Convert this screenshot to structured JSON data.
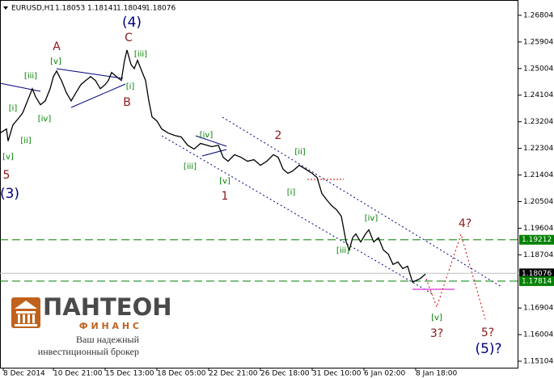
{
  "chart_data": {
    "type": "line",
    "header": {
      "symbol": "EURUSD,H1",
      "ohlc": [
        1.18053,
        1.18141,
        1.18049,
        1.18076
      ]
    },
    "series": [
      {
        "color": "#000000",
        "x": [
          0,
          8,
          10,
          16,
          22,
          28,
          34,
          40,
          44,
          50,
          56,
          62,
          66,
          70,
          76,
          82,
          88,
          94,
          100,
          106,
          112,
          118,
          124,
          130,
          134,
          138,
          144,
          150,
          154,
          157,
          162,
          166,
          170,
          176,
          180,
          184,
          188,
          194,
          200,
          208,
          216,
          224,
          232,
          240,
          248,
          256,
          262,
          270,
          276,
          282,
          290,
          298,
          306,
          314,
          322,
          330,
          338,
          344,
          350,
          356,
          362,
          370,
          378,
          386,
          392,
          398,
          404,
          410,
          416,
          422,
          428,
          432,
          436,
          440,
          446,
          452,
          456,
          462,
          468,
          474,
          480,
          486,
          492,
          498,
          504,
          510,
          514,
          520,
          526
        ],
        "values": [
          1.2282,
          1.2296,
          1.2255,
          1.231,
          1.2329,
          1.235,
          1.2391,
          1.2432,
          1.2405,
          1.2378,
          1.2391,
          1.2432,
          1.2473,
          1.2492,
          1.246,
          1.2419,
          1.2391,
          1.2419,
          1.2446,
          1.246,
          1.2473,
          1.246,
          1.2432,
          1.2446,
          1.246,
          1.2487,
          1.2473,
          1.246,
          1.2528,
          1.2563,
          1.2514,
          1.25,
          1.2528,
          1.2487,
          1.246,
          1.2391,
          1.2337,
          1.2323,
          1.2296,
          1.2282,
          1.2274,
          1.2269,
          1.2241,
          1.2228,
          1.2247,
          1.2241,
          1.2236,
          1.2241,
          1.22,
          1.2187,
          1.2209,
          1.22,
          1.2187,
          1.2192,
          1.2173,
          1.2187,
          1.2209,
          1.22,
          1.216,
          1.2146,
          1.2154,
          1.2173,
          1.216,
          1.2146,
          1.2132,
          1.2078,
          1.2056,
          1.2037,
          1.2023,
          1.2001,
          1.1914,
          1.1887,
          1.1928,
          1.1941,
          1.1914,
          1.1941,
          1.1955,
          1.1914,
          1.1928,
          1.1887,
          1.1873,
          1.1838,
          1.1846,
          1.1824,
          1.1832,
          1.1778,
          1.1783,
          1.1791,
          1.1805
        ]
      }
    ],
    "xlim": [
      0,
      641
    ],
    "xticks": [
      {
        "value": 4,
        "label": "8 Dec 2014"
      },
      {
        "value": 66,
        "label": "10 Dec 21:00"
      },
      {
        "value": 130,
        "label": "15 Dec 13:00"
      },
      {
        "value": 194,
        "label": "18 Dec 05:00"
      },
      {
        "value": 258,
        "label": "22 Dec 21:00"
      },
      {
        "value": 322,
        "label": "26 Dec 18:00"
      },
      {
        "value": 386,
        "label": "31 Dec 10:00"
      },
      {
        "value": 450,
        "label": "6 Jan 02:00"
      },
      {
        "value": 514,
        "label": "8 Jan 18:00"
      }
    ],
    "ylim": [
      1.14886,
      1.27322
    ],
    "yticks": [
      1.26804,
      1.25904,
      1.25004,
      1.24104,
      1.23204,
      1.22304,
      1.21404,
      1.20504,
      1.19604,
      1.18704,
      1.16904,
      1.16004,
      1.15104
    ],
    "levels": [
      {
        "value": 1.19212,
        "color": "#008000"
      },
      {
        "value": 1.17814,
        "color": "#008000"
      }
    ],
    "last_price": 1.18076,
    "annotations": [
      "5",
      "(3)",
      "[v]",
      "[i]",
      "[ii]",
      "[iii]",
      "[iv]",
      "A",
      "[v]",
      "(4)",
      "C",
      "[iii]",
      "[i]",
      "B",
      "[iv]",
      "[iii]",
      "[v]",
      "1",
      "2",
      "[ii]",
      "[i]",
      "[iv]",
      "[iii]",
      "[v]",
      "3?",
      "4?",
      "5?",
      "(5)?"
    ]
  },
  "logo": {
    "name": "ПАНТЕОН",
    "sub": "Ф И Н А Н С",
    "tagline": [
      "Ваш надежный",
      "инвестиционный брокер"
    ]
  }
}
